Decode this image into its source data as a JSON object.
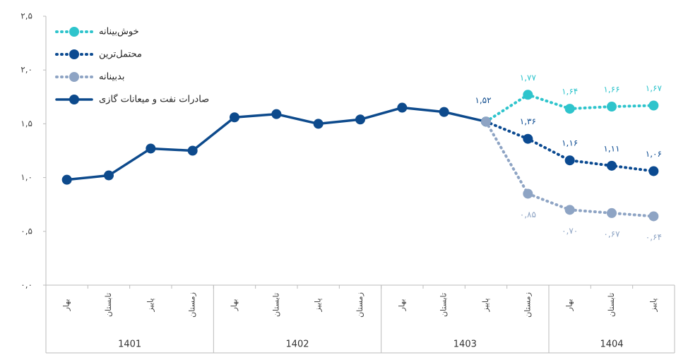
{
  "chart_data": {
    "type": "line",
    "categories": [
      "بهار",
      "تابستان",
      "پاییز",
      "زمستان",
      "بهار",
      "تابستان",
      "پاییز",
      "زمستان",
      "بهار",
      "تابستان",
      "پاییز",
      "زمستان",
      "بهار",
      "تابستان",
      "پاییز"
    ],
    "groups": [
      {
        "label": "1401",
        "span": 4
      },
      {
        "label": "1402",
        "span": 4
      },
      {
        "label": "1403",
        "span": 4
      },
      {
        "label": "1404",
        "span": 3
      }
    ],
    "series": [
      {
        "name": "خوش‌بینانه",
        "color": "#2ec4cc",
        "line_style": "dotted",
        "values": [
          null,
          null,
          null,
          null,
          null,
          null,
          null,
          null,
          null,
          null,
          1.52,
          1.77,
          1.64,
          1.66,
          1.67
        ],
        "value_labels": [
          null,
          null,
          null,
          null,
          null,
          null,
          null,
          null,
          null,
          null,
          null,
          "۱,۷۷",
          "۱,۶۴",
          "۱,۶۶",
          "۱,۶۷"
        ]
      },
      {
        "name": "محتمل‌ترین",
        "color": "#0b4a91",
        "line_style": "dotted",
        "values": [
          null,
          null,
          null,
          null,
          null,
          null,
          null,
          null,
          null,
          null,
          1.52,
          1.36,
          1.16,
          1.11,
          1.06
        ],
        "value_labels": [
          null,
          null,
          null,
          null,
          null,
          null,
          null,
          null,
          null,
          null,
          null,
          "۱,۳۶",
          "۱,۱۶",
          "۱,۱۱",
          "۱,۰۶"
        ]
      },
      {
        "name": "بدبینانه",
        "color": "#8ea4c4",
        "line_style": "dotted",
        "values": [
          null,
          null,
          null,
          null,
          null,
          null,
          null,
          null,
          null,
          null,
          1.52,
          0.85,
          0.7,
          0.67,
          0.64
        ],
        "value_labels": [
          null,
          null,
          null,
          null,
          null,
          null,
          null,
          null,
          null,
          null,
          null,
          "۰,۸۵",
          "۰,۷۰",
          "۰,۶۷",
          "۰,۶۴"
        ]
      },
      {
        "name": "صادرات نفت و میعانات گازی",
        "color": "#0d4a8c",
        "line_style": "solid",
        "values": [
          0.98,
          1.02,
          1.27,
          1.25,
          1.56,
          1.59,
          1.5,
          1.54,
          1.65,
          1.61,
          1.52,
          null,
          null,
          null,
          null
        ],
        "value_labels": [
          null,
          null,
          null,
          null,
          null,
          null,
          null,
          null,
          null,
          null,
          "۱,۵۲",
          null,
          null,
          null,
          null
        ]
      }
    ],
    "ylim": [
      0,
      2.5
    ],
    "yticks": [
      {
        "value": 0,
        "label": "۰,۰"
      },
      {
        "value": 0.5,
        "label": "۰,۵"
      },
      {
        "value": 1,
        "label": "۱,۰"
      },
      {
        "value": 1.5,
        "label": "۱,۵"
      },
      {
        "value": 2,
        "label": "۲,۰"
      },
      {
        "value": 2.5,
        "label": "۲,۵"
      }
    ],
    "legend": "top-left"
  }
}
